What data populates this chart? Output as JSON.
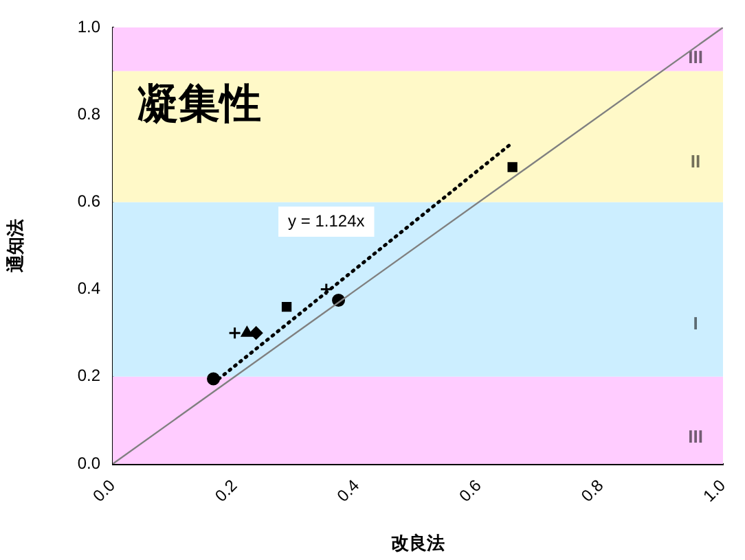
{
  "chart_data": {
    "type": "scatter",
    "title": "凝集性",
    "xlabel": "改良法",
    "ylabel": "通知法",
    "xlim": [
      0,
      1
    ],
    "xticks": [
      {
        "value": 0,
        "label": "0.0"
      },
      0.2,
      0.4,
      0.6,
      0.8,
      {
        "value": 1,
        "label": "1.0"
      }
    ],
    "ylim": [
      0,
      1
    ],
    "yticks": [
      {
        "value": 0,
        "label": "0.0"
      },
      0.2,
      0.4,
      0.6,
      0.8,
      {
        "value": 1,
        "label": "1.0"
      }
    ],
    "bands": [
      {
        "axis": "y",
        "from": 0,
        "to": 0.2,
        "label": "III",
        "color": "#ffccff"
      },
      {
        "axis": "y",
        "from": 0.2,
        "to": 0.6,
        "label": "I",
        "color": "#cceeff"
      },
      {
        "axis": "y",
        "from": 0.6,
        "to": 0.9,
        "label": "II",
        "color": "#fff9c8"
      },
      {
        "axis": "y",
        "from": 0.9,
        "to": 1,
        "label": "III",
        "color": "#ffccff"
      }
    ],
    "series": [
      {
        "type": "line",
        "x": [
          0,
          1
        ],
        "values": [
          0,
          1
        ],
        "color": "#808080",
        "marker": "none",
        "line_style": "solid"
      },
      {
        "type": "line",
        "x": [
          0.165,
          0.655
        ],
        "values": [
          0.185,
          0.736
        ],
        "color": "#000000",
        "marker": "none",
        "line_style": "dotted"
      },
      {
        "x": [
          0.165
        ],
        "values": [
          0.195
        ],
        "color": "#000000",
        "marker": "circle"
      },
      {
        "x": [
          0.2
        ],
        "values": [
          0.3
        ],
        "color": "#000000",
        "marker": "cross"
      },
      {
        "x": [
          0.22
        ],
        "values": [
          0.3
        ],
        "color": "#000000",
        "marker": "triangle"
      },
      {
        "x": [
          0.235
        ],
        "values": [
          0.3
        ],
        "color": "#000000",
        "marker": "diamond"
      },
      {
        "x": [
          0.285
        ],
        "values": [
          0.36
        ],
        "color": "#000000",
        "marker": "square"
      },
      {
        "x": [
          0.35
        ],
        "values": [
          0.4
        ],
        "color": "#000000",
        "marker": "cross"
      },
      {
        "x": [
          0.37
        ],
        "values": [
          0.375
        ],
        "color": "#000000",
        "marker": "circle"
      },
      {
        "x": [
          0.655
        ],
        "values": [
          0.68
        ],
        "color": "#000000",
        "marker": "square"
      }
    ],
    "annotations": [
      "y = 1.124x"
    ],
    "legend": false
  }
}
